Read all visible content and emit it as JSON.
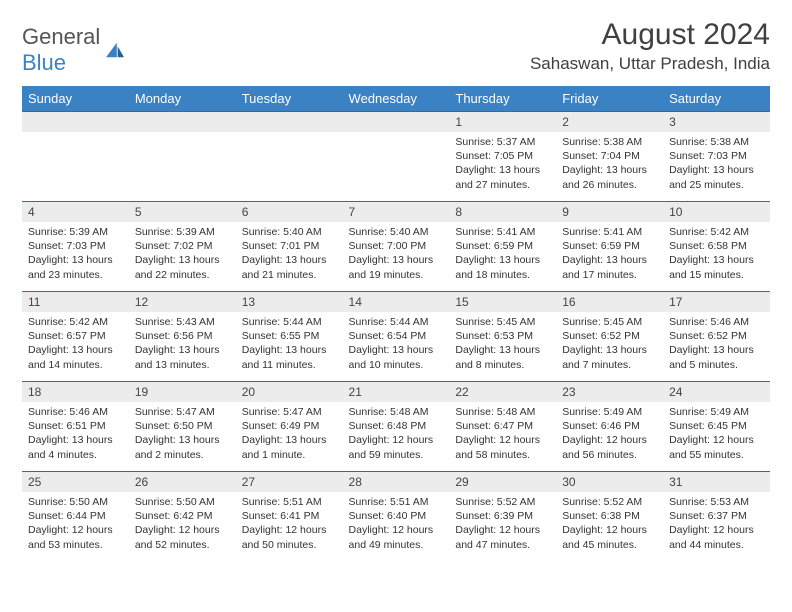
{
  "brand": {
    "name_prefix": "General",
    "name_suffix": "Blue"
  },
  "header": {
    "month_title": "August 2024",
    "location": "Sahaswan, Uttar Pradesh, India"
  },
  "style": {
    "header_bg": "#3b82c4",
    "header_text": "#ffffff",
    "daynum_bg": "#ececec",
    "row_border": "#3b6a9a",
    "body_text": "#333333",
    "font_family": "Arial",
    "cell_font_size": 10.5,
    "header_font_size": 13,
    "title_font_size": 30,
    "location_font_size": 17
  },
  "columns": [
    "Sunday",
    "Monday",
    "Tuesday",
    "Wednesday",
    "Thursday",
    "Friday",
    "Saturday"
  ],
  "weeks": [
    [
      null,
      null,
      null,
      null,
      {
        "day": "1",
        "sunrise": "5:37 AM",
        "sunset": "7:05 PM",
        "daylight": "13 hours and 27 minutes."
      },
      {
        "day": "2",
        "sunrise": "5:38 AM",
        "sunset": "7:04 PM",
        "daylight": "13 hours and 26 minutes."
      },
      {
        "day": "3",
        "sunrise": "5:38 AM",
        "sunset": "7:03 PM",
        "daylight": "13 hours and 25 minutes."
      }
    ],
    [
      {
        "day": "4",
        "sunrise": "5:39 AM",
        "sunset": "7:03 PM",
        "daylight": "13 hours and 23 minutes."
      },
      {
        "day": "5",
        "sunrise": "5:39 AM",
        "sunset": "7:02 PM",
        "daylight": "13 hours and 22 minutes."
      },
      {
        "day": "6",
        "sunrise": "5:40 AM",
        "sunset": "7:01 PM",
        "daylight": "13 hours and 21 minutes."
      },
      {
        "day": "7",
        "sunrise": "5:40 AM",
        "sunset": "7:00 PM",
        "daylight": "13 hours and 19 minutes."
      },
      {
        "day": "8",
        "sunrise": "5:41 AM",
        "sunset": "6:59 PM",
        "daylight": "13 hours and 18 minutes."
      },
      {
        "day": "9",
        "sunrise": "5:41 AM",
        "sunset": "6:59 PM",
        "daylight": "13 hours and 17 minutes."
      },
      {
        "day": "10",
        "sunrise": "5:42 AM",
        "sunset": "6:58 PM",
        "daylight": "13 hours and 15 minutes."
      }
    ],
    [
      {
        "day": "11",
        "sunrise": "5:42 AM",
        "sunset": "6:57 PM",
        "daylight": "13 hours and 14 minutes."
      },
      {
        "day": "12",
        "sunrise": "5:43 AM",
        "sunset": "6:56 PM",
        "daylight": "13 hours and 13 minutes."
      },
      {
        "day": "13",
        "sunrise": "5:44 AM",
        "sunset": "6:55 PM",
        "daylight": "13 hours and 11 minutes."
      },
      {
        "day": "14",
        "sunrise": "5:44 AM",
        "sunset": "6:54 PM",
        "daylight": "13 hours and 10 minutes."
      },
      {
        "day": "15",
        "sunrise": "5:45 AM",
        "sunset": "6:53 PM",
        "daylight": "13 hours and 8 minutes."
      },
      {
        "day": "16",
        "sunrise": "5:45 AM",
        "sunset": "6:52 PM",
        "daylight": "13 hours and 7 minutes."
      },
      {
        "day": "17",
        "sunrise": "5:46 AM",
        "sunset": "6:52 PM",
        "daylight": "13 hours and 5 minutes."
      }
    ],
    [
      {
        "day": "18",
        "sunrise": "5:46 AM",
        "sunset": "6:51 PM",
        "daylight": "13 hours and 4 minutes."
      },
      {
        "day": "19",
        "sunrise": "5:47 AM",
        "sunset": "6:50 PM",
        "daylight": "13 hours and 2 minutes."
      },
      {
        "day": "20",
        "sunrise": "5:47 AM",
        "sunset": "6:49 PM",
        "daylight": "13 hours and 1 minute."
      },
      {
        "day": "21",
        "sunrise": "5:48 AM",
        "sunset": "6:48 PM",
        "daylight": "12 hours and 59 minutes."
      },
      {
        "day": "22",
        "sunrise": "5:48 AM",
        "sunset": "6:47 PM",
        "daylight": "12 hours and 58 minutes."
      },
      {
        "day": "23",
        "sunrise": "5:49 AM",
        "sunset": "6:46 PM",
        "daylight": "12 hours and 56 minutes."
      },
      {
        "day": "24",
        "sunrise": "5:49 AM",
        "sunset": "6:45 PM",
        "daylight": "12 hours and 55 minutes."
      }
    ],
    [
      {
        "day": "25",
        "sunrise": "5:50 AM",
        "sunset": "6:44 PM",
        "daylight": "12 hours and 53 minutes."
      },
      {
        "day": "26",
        "sunrise": "5:50 AM",
        "sunset": "6:42 PM",
        "daylight": "12 hours and 52 minutes."
      },
      {
        "day": "27",
        "sunrise": "5:51 AM",
        "sunset": "6:41 PM",
        "daylight": "12 hours and 50 minutes."
      },
      {
        "day": "28",
        "sunrise": "5:51 AM",
        "sunset": "6:40 PM",
        "daylight": "12 hours and 49 minutes."
      },
      {
        "day": "29",
        "sunrise": "5:52 AM",
        "sunset": "6:39 PM",
        "daylight": "12 hours and 47 minutes."
      },
      {
        "day": "30",
        "sunrise": "5:52 AM",
        "sunset": "6:38 PM",
        "daylight": "12 hours and 45 minutes."
      },
      {
        "day": "31",
        "sunrise": "5:53 AM",
        "sunset": "6:37 PM",
        "daylight": "12 hours and 44 minutes."
      }
    ]
  ],
  "labels": {
    "sunrise": "Sunrise:",
    "sunset": "Sunset:",
    "daylight": "Daylight:"
  }
}
